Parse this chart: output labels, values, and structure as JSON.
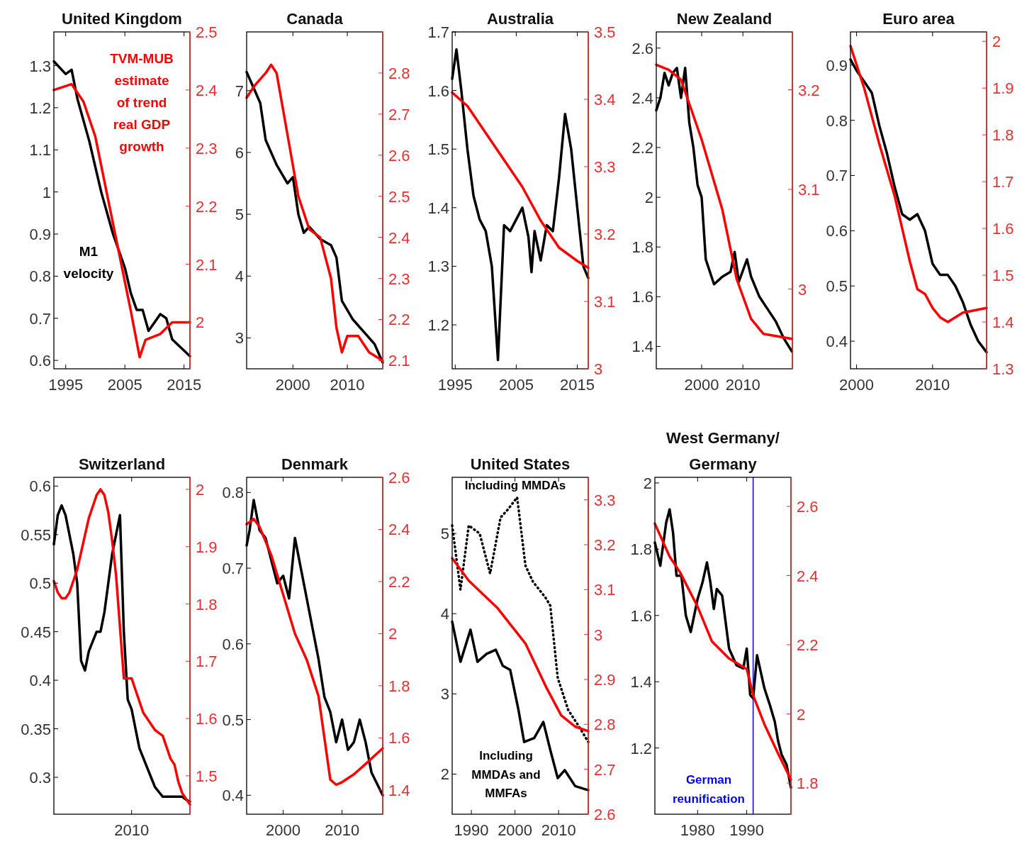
{
  "chart_data": [
    {
      "type": "line",
      "title": "United Kingdom",
      "xlim": [
        1993,
        2016
      ],
      "xticks": [
        1995,
        2005,
        2015
      ],
      "ylim": [
        0.58,
        1.38
      ],
      "yticks": [
        0.6,
        0.7,
        0.8,
        0.9,
        1,
        1.1,
        1.2,
        1.3
      ],
      "y2lim": [
        1.92,
        2.5
      ],
      "y2ticks": [
        2,
        2.1,
        2.2,
        2.3,
        2.4,
        2.5
      ],
      "annotations": [
        "TVM-MUB estimate of trend real GDP growth",
        "M1 velocity"
      ],
      "series": [
        {
          "color": "#000000",
          "x": [
            1993,
            1995,
            1996,
            1997,
            1999,
            2001,
            2003,
            2005,
            2006,
            2007,
            2008,
            2009,
            2010,
            2011,
            2012,
            2013,
            2016
          ],
          "values": [
            1.31,
            1.28,
            1.29,
            1.22,
            1.12,
            1.0,
            0.9,
            0.82,
            0.76,
            0.72,
            0.72,
            0.67,
            0.69,
            0.71,
            0.7,
            0.65,
            0.61
          ]
        },
        {
          "color": "#ff0000",
          "axis": "y2",
          "x": [
            1993,
            1996,
            1998,
            2000,
            2002,
            2004,
            2006,
            2007.5,
            2008.5,
            2011,
            2013,
            2016
          ],
          "values": [
            2.4,
            2.41,
            2.38,
            2.32,
            2.22,
            2.12,
            2.02,
            1.94,
            1.97,
            1.98,
            2.0,
            2.0
          ]
        }
      ]
    },
    {
      "type": "line",
      "title": "Canada",
      "xlim": [
        1991.5,
        2016.5
      ],
      "xticks": [
        2000,
        2010
      ],
      "ylim": [
        2.5,
        7.95
      ],
      "yticks": [
        3,
        4,
        5,
        6,
        7
      ],
      "y2lim": [
        2.08,
        2.9
      ],
      "y2ticks": [
        2.1,
        2.2,
        2.3,
        2.4,
        2.5,
        2.6,
        2.7,
        2.8
      ],
      "series": [
        {
          "color": "#000000",
          "x": [
            1991.5,
            1993,
            1994,
            1995,
            1997,
            1999,
            2000,
            2001,
            2002,
            2003,
            2005,
            2007,
            2008,
            2009,
            2011,
            2013,
            2015,
            2016.5
          ],
          "values": [
            7.3,
            7.0,
            6.8,
            6.2,
            5.8,
            5.5,
            5.6,
            5.0,
            4.7,
            4.8,
            4.6,
            4.5,
            4.3,
            3.6,
            3.3,
            3.1,
            2.9,
            2.6
          ]
        },
        {
          "color": "#ff0000",
          "axis": "y2",
          "x": [
            1991.5,
            1993,
            1995,
            1996,
            1997,
            1999,
            2001,
            2003,
            2005,
            2007,
            2008,
            2009,
            2010,
            2012,
            2014,
            2016.5
          ],
          "values": [
            2.74,
            2.77,
            2.8,
            2.82,
            2.8,
            2.65,
            2.5,
            2.42,
            2.4,
            2.3,
            2.18,
            2.12,
            2.16,
            2.16,
            2.12,
            2.1
          ]
        }
      ]
    },
    {
      "type": "line",
      "title": "Australia",
      "xlim": [
        1994.5,
        2016.8
      ],
      "xticks": [
        1995,
        2005,
        2015
      ],
      "ylim": [
        1.125,
        1.7
      ],
      "yticks": [
        1.2,
        1.3,
        1.4,
        1.5,
        1.6,
        1.7
      ],
      "y2lim": [
        3,
        3.5
      ],
      "y2ticks": [
        3,
        3.1,
        3.2,
        3.3,
        3.4,
        3.5
      ],
      "series": [
        {
          "color": "#000000",
          "x": [
            1994.5,
            1995.2,
            1996,
            1997,
            1998,
            1999,
            2000,
            2001,
            2002,
            2003,
            2004,
            2005,
            2006,
            2007,
            2007.5,
            2008,
            2009,
            2010,
            2011,
            2012,
            2013,
            2014,
            2015,
            2016,
            2016.8
          ],
          "values": [
            1.62,
            1.67,
            1.6,
            1.5,
            1.42,
            1.38,
            1.36,
            1.3,
            1.14,
            1.37,
            1.36,
            1.38,
            1.4,
            1.35,
            1.29,
            1.36,
            1.31,
            1.37,
            1.36,
            1.45,
            1.56,
            1.5,
            1.4,
            1.3,
            1.28
          ]
        },
        {
          "color": "#ff0000",
          "axis": "y2",
          "x": [
            1994.5,
            1997,
            2000,
            2003,
            2006,
            2009,
            2012,
            2015,
            2016.8
          ],
          "values": [
            3.41,
            3.39,
            3.35,
            3.31,
            3.27,
            3.22,
            3.18,
            3.16,
            3.15
          ]
        }
      ]
    },
    {
      "type": "line",
      "title": "New Zealand",
      "xlim": [
        1989,
        2022
      ],
      "xticks": [
        2000,
        2010
      ],
      "ylim": [
        1.31,
        2.665
      ],
      "yticks": [
        1.4,
        1.6,
        1.8,
        2,
        2.2,
        2.4,
        2.6
      ],
      "y2lim": [
        2.92,
        3.258
      ],
      "y2ticks": [
        3,
        3.1,
        3.2
      ],
      "series": [
        {
          "color": "#000000",
          "x": [
            1989,
            1990,
            1991,
            1992,
            1993,
            1994,
            1995,
            1996,
            1997,
            1998,
            1999,
            2000,
            2001,
            2002,
            2003,
            2005,
            2007,
            2008,
            2009,
            2011,
            2012,
            2014,
            2016,
            2018,
            2020,
            2021.9
          ],
          "values": [
            2.35,
            2.4,
            2.5,
            2.45,
            2.5,
            2.52,
            2.4,
            2.52,
            2.3,
            2.2,
            2.05,
            2.0,
            1.75,
            1.7,
            1.65,
            1.68,
            1.7,
            1.78,
            1.66,
            1.75,
            1.68,
            1.6,
            1.55,
            1.5,
            1.43,
            1.38
          ]
        },
        {
          "color": "#ff0000",
          "axis": "y2",
          "x": [
            1989,
            1992,
            1995,
            2000,
            2005,
            2008.5,
            2012,
            2015,
            2021.9
          ],
          "values": [
            3.225,
            3.22,
            3.21,
            3.15,
            3.08,
            3.01,
            2.97,
            2.955,
            2.95
          ]
        }
      ]
    },
    {
      "type": "line",
      "title": "Euro area",
      "xlim": [
        1999.2,
        2017.1
      ],
      "xticks": [
        2000,
        2010
      ],
      "ylim": [
        0.35,
        0.96
      ],
      "yticks": [
        0.4,
        0.5,
        0.6,
        0.7,
        0.8,
        0.9
      ],
      "y2lim": [
        1.3,
        2.02
      ],
      "y2ticks": [
        1.3,
        1.4,
        1.5,
        1.6,
        1.7,
        1.8,
        1.9,
        2
      ],
      "series": [
        {
          "color": "#000000",
          "x": [
            1999.2,
            2000,
            2001,
            2002,
            2003,
            2004,
            2005,
            2006,
            2007,
            2008,
            2009,
            2010,
            2011,
            2012,
            2013,
            2014,
            2015,
            2016,
            2017.1
          ],
          "values": [
            0.91,
            0.89,
            0.87,
            0.85,
            0.79,
            0.74,
            0.68,
            0.63,
            0.62,
            0.63,
            0.6,
            0.54,
            0.52,
            0.52,
            0.5,
            0.47,
            0.43,
            0.4,
            0.38
          ]
        },
        {
          "color": "#ff0000",
          "axis": "y2",
          "x": [
            1999.2,
            2000,
            2001,
            2003,
            2005,
            2006,
            2007,
            2008,
            2009,
            2010,
            2011,
            2012,
            2014,
            2017.1
          ],
          "values": [
            1.99,
            1.95,
            1.9,
            1.78,
            1.67,
            1.6,
            1.53,
            1.47,
            1.46,
            1.43,
            1.41,
            1.4,
            1.42,
            1.43
          ]
        }
      ]
    },
    {
      "type": "line",
      "title": "Switzerland",
      "categories": [
        null,
        null,
        null,
        null,
        null,
        null,
        null,
        null,
        null,
        null,
        null,
        null,
        null,
        null,
        null,
        null,
        null,
        null,
        null,
        null,
        "2010",
        null,
        null,
        null,
        null,
        null,
        null,
        null,
        null,
        null,
        null,
        null,
        null,
        null,
        null,
        null
      ],
      "ylim": [
        0.262,
        0.609
      ],
      "yticks": [
        0.3,
        0.35,
        0.4,
        0.45,
        0.5,
        0.55,
        0.6
      ],
      "y2lim": [
        1.433,
        2.021
      ],
      "y2ticks": [
        1.5,
        1.6,
        1.7,
        1.8,
        1.9,
        2
      ],
      "series": [
        {
          "color": "#000000",
          "values": [
            0.54,
            0.57,
            0.58,
            0.57,
            0.55,
            0.53,
            0.5,
            0.42,
            0.41,
            0.43,
            0.44,
            0.45,
            0.45,
            0.47,
            0.5,
            0.53,
            0.55,
            0.57,
            0.45,
            0.38,
            0.37,
            0.35,
            0.33,
            0.32,
            0.31,
            0.3,
            0.29,
            0.285,
            0.28,
            0.28,
            0.28,
            0.28,
            0.28,
            0.28,
            0.277,
            0.275
          ]
        },
        {
          "color": "#ff0000",
          "axis": "y2",
          "values": [
            1.84,
            1.82,
            1.81,
            1.81,
            1.82,
            1.84,
            1.86,
            1.89,
            1.92,
            1.95,
            1.97,
            1.99,
            2.0,
            1.99,
            1.96,
            1.91,
            1.85,
            1.76,
            1.67,
            1.67,
            1.67,
            1.65,
            1.63,
            1.61,
            1.6,
            1.59,
            1.58,
            1.575,
            1.57,
            1.55,
            1.53,
            1.52,
            1.49,
            1.47,
            1.46,
            1.45
          ]
        }
      ]
    },
    {
      "type": "line",
      "title": "Denmark",
      "xlim": [
        1993.8,
        2016.9
      ],
      "xticks": [
        2000,
        2010
      ],
      "ylim": [
        0.375,
        0.82
      ],
      "yticks": [
        0.4,
        0.5,
        0.6,
        0.7,
        0.8
      ],
      "y2lim": [
        1.307,
        2.6
      ],
      "y2ticks": [
        1.4,
        1.6,
        1.8,
        2,
        2.2,
        2.4,
        2.6
      ],
      "series": [
        {
          "color": "#000000",
          "x": [
            1993.8,
            1994.3,
            1995,
            1996,
            1997,
            1998,
            1999,
            2000,
            2001,
            2002,
            2003,
            2004,
            2005,
            2006,
            2007,
            2008,
            2009,
            2010,
            2011,
            2012,
            2013,
            2014,
            2015,
            2016.9
          ],
          "values": [
            0.73,
            0.75,
            0.79,
            0.75,
            0.74,
            0.71,
            0.68,
            0.69,
            0.66,
            0.74,
            0.7,
            0.66,
            0.62,
            0.58,
            0.53,
            0.51,
            0.47,
            0.5,
            0.46,
            0.47,
            0.5,
            0.47,
            0.43,
            0.4
          ]
        },
        {
          "color": "#ff0000",
          "axis": "y2",
          "x": [
            1993.8,
            1995,
            1996,
            1998,
            2000,
            2002,
            2004,
            2006,
            2007,
            2008,
            2009,
            2010,
            2012,
            2014,
            2016.9
          ],
          "values": [
            2.42,
            2.44,
            2.41,
            2.3,
            2.15,
            2.0,
            1.9,
            1.76,
            1.6,
            1.44,
            1.42,
            1.43,
            1.46,
            1.5,
            1.56
          ]
        }
      ]
    },
    {
      "type": "line",
      "title": "United States",
      "xlim": [
        1985.6,
        2016.8
      ],
      "xticks": [
        1990,
        2000,
        2010
      ],
      "ylim": [
        1.5,
        5.7
      ],
      "yticks": [
        2,
        3,
        4,
        5
      ],
      "y2lim": [
        2.6,
        3.35
      ],
      "y2ticks": [
        2.6,
        2.7,
        2.8,
        2.9,
        3,
        3.1,
        3.2,
        3.3
      ],
      "annotations": [
        "Including MMDAs",
        "Including MMDAs and MMFAs"
      ],
      "series": [
        {
          "color": "#000000",
          "x": [
            1985.6,
            1987.5,
            1989.8,
            1991.4,
            1993.5,
            1995.6,
            1997.2,
            1998.9,
            2000.8,
            2002.1,
            2004.4,
            2006.5,
            2008.1,
            2009.8,
            2011.4,
            2013.8,
            2016.8
          ],
          "values": [
            3.9,
            3.4,
            3.8,
            3.4,
            3.5,
            3.55,
            3.35,
            3.3,
            2.8,
            2.4,
            2.45,
            2.65,
            2.3,
            1.95,
            2.05,
            1.85,
            1.8
          ]
        },
        {
          "color": "#000000",
          "line_style": "dotted",
          "x": [
            1985.6,
            1987.5,
            1989.4,
            1991.9,
            1994.3,
            1996.7,
            1998.4,
            2000.5,
            2002.4,
            2004.1,
            2007,
            2008.1,
            2009.8,
            2012.2,
            2014.6,
            2016.8
          ],
          "values": [
            5.1,
            4.3,
            5.1,
            5.0,
            4.5,
            5.2,
            5.3,
            5.45,
            4.6,
            4.4,
            4.2,
            4.1,
            3.2,
            2.8,
            2.6,
            2.4
          ]
        },
        {
          "color": "#ff0000",
          "axis": "y2",
          "x": [
            1985.6,
            1989.4,
            1995.9,
            2002.4,
            2007.3,
            2010.6,
            2013.8,
            2016.8
          ],
          "values": [
            3.17,
            3.12,
            3.06,
            2.98,
            2.88,
            2.82,
            2.795,
            2.785
          ]
        }
      ]
    },
    {
      "type": "line",
      "title": "West Germany/ Germany",
      "xlim": [
        1971.3,
        1999
      ],
      "xticks": [
        1980,
        1990
      ],
      "ylim": [
        1.0,
        2.017
      ],
      "yticks": [
        1.2,
        1.4,
        1.6,
        1.8,
        2
      ],
      "y2lim": [
        1.71,
        2.684
      ],
      "y2ticks": [
        1.8,
        2,
        2.2,
        2.4,
        2.6
      ],
      "ref_lines": [
        {
          "axis": "x",
          "value": 1991.3,
          "label": "German reunification",
          "color": "#0000ff"
        }
      ],
      "series": [
        {
          "color": "#000000",
          "x": [
            1971.3,
            1972.4,
            1973.6,
            1974.3,
            1975,
            1975.7,
            1976.7,
            1977.6,
            1978.6,
            1980,
            1981,
            1981.9,
            1982.6,
            1983.3,
            1983.9,
            1985,
            1986.4,
            1987.9,
            1989.3,
            1990,
            1990.7,
            1991.3,
            1992.1,
            1993.6,
            1994.7,
            1995.7,
            1996.4,
            1997.1,
            1998.1,
            1999
          ],
          "values": [
            1.82,
            1.75,
            1.88,
            1.92,
            1.85,
            1.72,
            1.72,
            1.6,
            1.55,
            1.65,
            1.7,
            1.76,
            1.7,
            1.62,
            1.68,
            1.66,
            1.5,
            1.45,
            1.44,
            1.5,
            1.36,
            1.35,
            1.48,
            1.38,
            1.33,
            1.28,
            1.22,
            1.18,
            1.15,
            1.08
          ]
        },
        {
          "color": "#ff0000",
          "axis": "y2",
          "x": [
            1971.3,
            1974.3,
            1976.4,
            1980,
            1982.9,
            1986.4,
            1990,
            1991.4,
            1993.6,
            1996.4,
            1999
          ],
          "values": [
            2.55,
            2.455,
            2.41,
            2.31,
            2.21,
            2.16,
            2.13,
            2.05,
            1.97,
            1.885,
            1.81
          ]
        }
      ]
    }
  ]
}
